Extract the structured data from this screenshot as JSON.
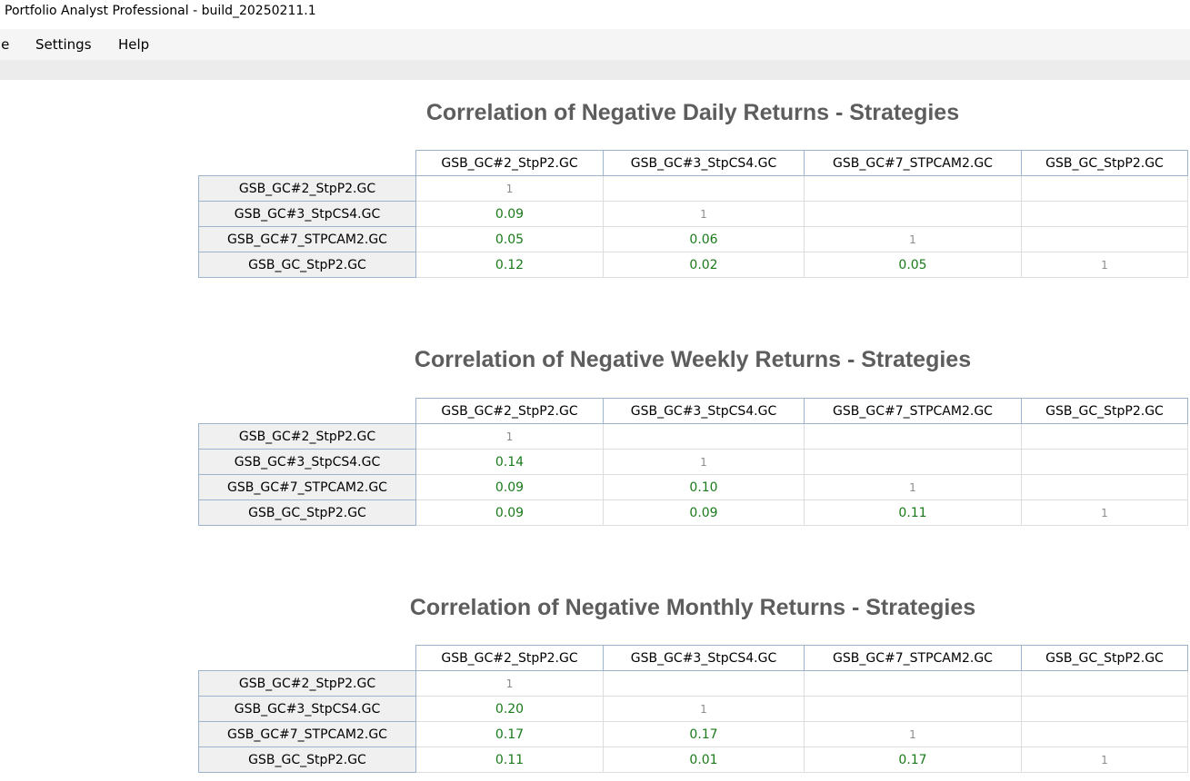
{
  "window": {
    "title": "Portfolio Analyst Professional - build_20250211.1"
  },
  "menu": {
    "items": [
      "le",
      "Settings",
      "Help"
    ]
  },
  "strategies": [
    "GSB_GC#2_StpP2.GC",
    "GSB_GC#3_StpCS4.GC",
    "GSB_GC#7_STPCAM2.GC",
    "GSB_GC_StpP2.GC"
  ],
  "sections": [
    {
      "title": "Correlation of Negative Daily Returns - Strategies",
      "matrix": [
        [
          "1",
          "",
          "",
          ""
        ],
        [
          "0.09",
          "1",
          "",
          ""
        ],
        [
          "0.05",
          "0.06",
          "1",
          ""
        ],
        [
          "0.12",
          "0.02",
          "0.05",
          "1"
        ]
      ]
    },
    {
      "title": "Correlation of Negative Weekly Returns - Strategies",
      "matrix": [
        [
          "1",
          "",
          "",
          ""
        ],
        [
          "0.14",
          "1",
          "",
          ""
        ],
        [
          "0.09",
          "0.10",
          "1",
          ""
        ],
        [
          "0.09",
          "0.09",
          "0.11",
          "1"
        ]
      ]
    },
    {
      "title": "Correlation of Negative Monthly Returns - Strategies",
      "matrix": [
        [
          "1",
          "",
          "",
          ""
        ],
        [
          "0.20",
          "1",
          "",
          ""
        ],
        [
          "0.17",
          "0.17",
          "1",
          ""
        ],
        [
          "0.11",
          "0.01",
          "0.17",
          "1"
        ]
      ]
    }
  ],
  "colors": {
    "title_text": "#5d5d5d",
    "value_text": "#1a7a1a",
    "diagonal_text": "#8c8c8c",
    "header_border": "#9bb3cc",
    "row_header_bg": "#f0f0f0"
  }
}
